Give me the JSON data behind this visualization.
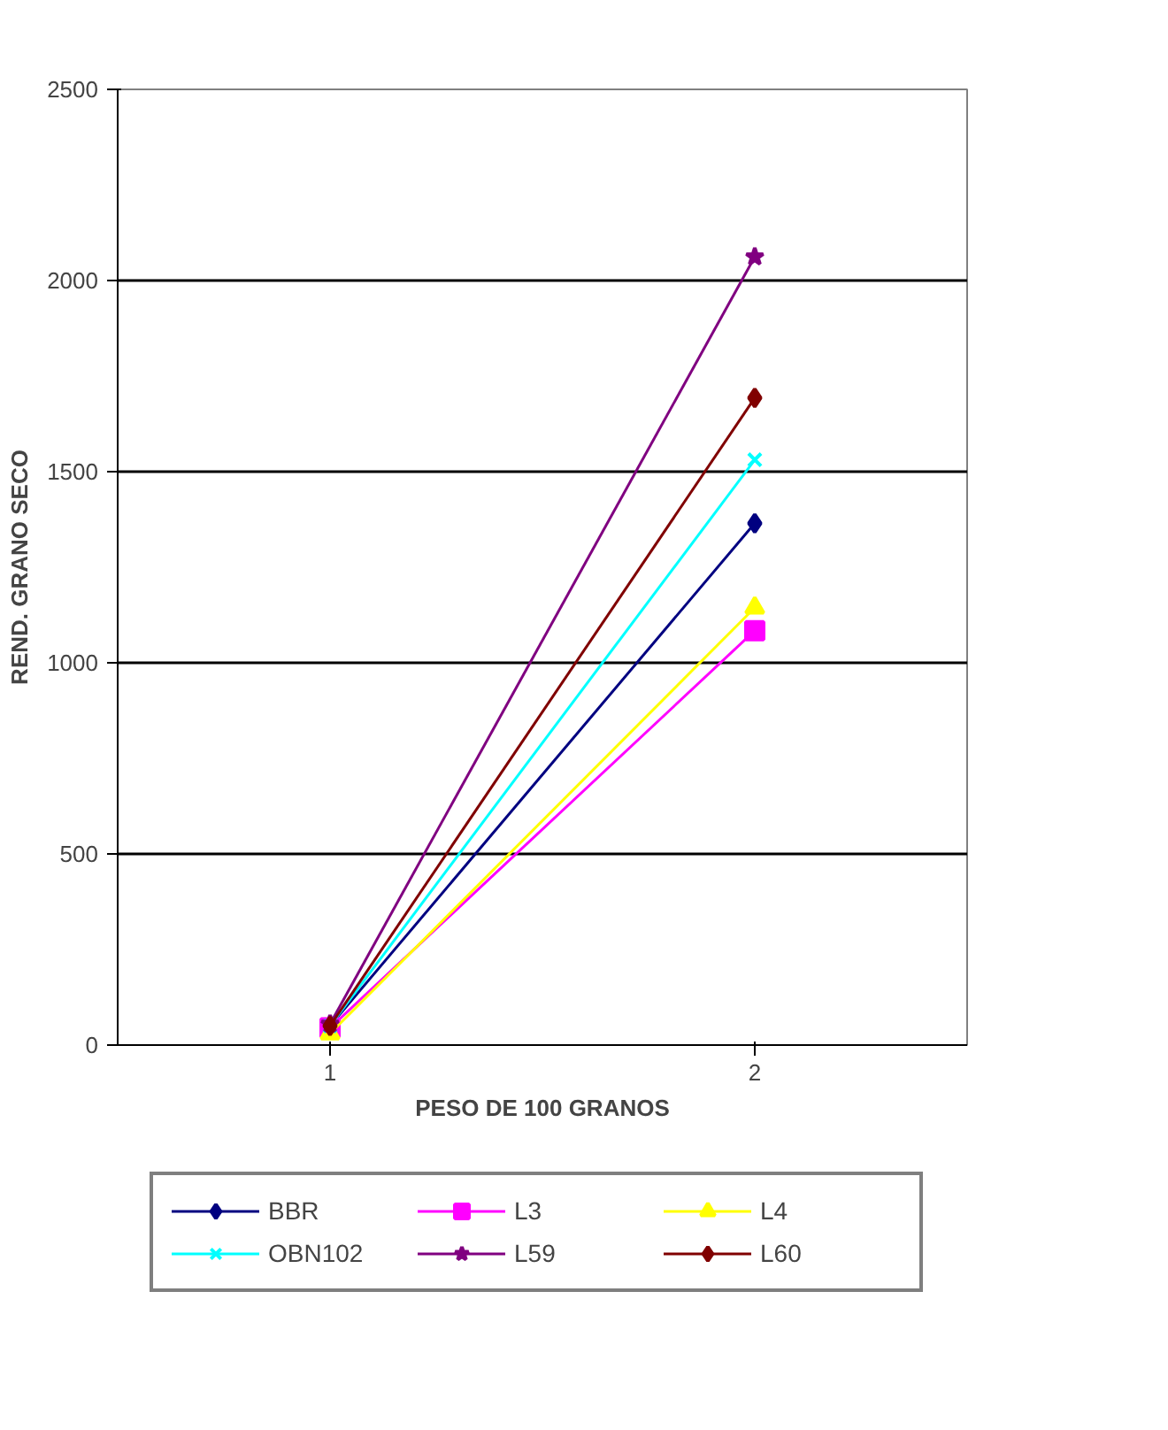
{
  "chart_data": {
    "type": "line",
    "xlabel": "PESO DE 100 GRANOS",
    "ylabel": "REND. GRANO SECO",
    "categories": [
      "1",
      "2"
    ],
    "ylim": [
      0,
      2500
    ],
    "yticks": [
      0,
      500,
      1000,
      1500,
      2000,
      2500
    ],
    "grid": "y",
    "legend": "bottom",
    "series": [
      {
        "name": "BBR",
        "color": "#000080",
        "marker": "diamond",
        "values": [
          50,
          1365
        ]
      },
      {
        "name": "L3",
        "color": "#ff00ff",
        "marker": "square",
        "values": [
          45,
          1084
        ]
      },
      {
        "name": "L4",
        "color": "#ffff00",
        "marker": "triangle",
        "values": [
          30,
          1144
        ]
      },
      {
        "name": "OBN102",
        "color": "#00ffff",
        "marker": "cross",
        "values": [
          50,
          1531
        ]
      },
      {
        "name": "L59",
        "color": "#800080",
        "marker": "star",
        "values": [
          55,
          2062
        ]
      },
      {
        "name": "L60",
        "color": "#800000",
        "marker": "diamond",
        "values": [
          50,
          1693
        ]
      }
    ]
  }
}
